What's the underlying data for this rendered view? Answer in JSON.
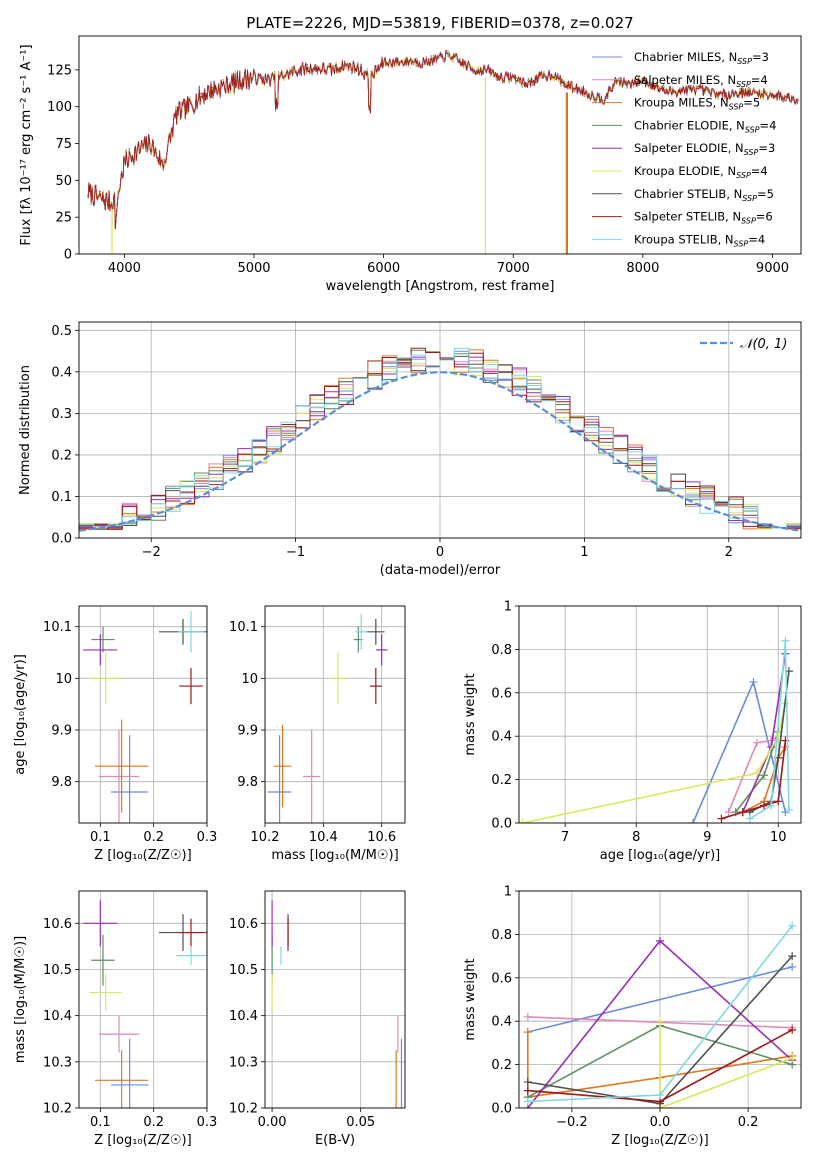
{
  "title": "PLATE=2226, MJD=53819, FIBERID=0378, z=0.027",
  "colors": {
    "Chabrier MILES": "#6a8cd8",
    "Salpeter MILES": "#e08ab8",
    "Kroupa MILES": "#e07820",
    "Chabrier ELODIE": "#5f8f64",
    "Salpeter ELODIE": "#9a2eb4",
    "Kroupa ELODIE": "#d8e85a",
    "Chabrier STELIB": "#505050",
    "Salpeter STELIB": "#a01818",
    "Kroupa STELIB": "#80d8e0",
    "normal": "#5b8ed8"
  },
  "chart_data": [
    {
      "id": "spectrum",
      "type": "line",
      "title": "PLATE=2226, MJD=53819, FIBERID=0378, z=0.027",
      "xlabel": "wavelength [Angstrom, rest frame]",
      "ylabel": "Flux [fλ 10⁻¹⁷ erg cm⁻² s⁻¹ A⁻¹]",
      "xlim": [
        3650,
        9220
      ],
      "ylim": [
        0,
        148
      ],
      "xticks": [
        4000,
        5000,
        6000,
        7000,
        8000,
        9000
      ],
      "yticks": [
        0,
        25,
        50,
        75,
        100,
        125
      ],
      "legend": "top-right",
      "x": [
        3720,
        3800,
        3900,
        3950,
        4000,
        4100,
        4200,
        4300,
        4400,
        4500,
        4600,
        4700,
        4800,
        4900,
        5000,
        5100,
        5200,
        5300,
        5400,
        5500,
        5600,
        5700,
        5800,
        5900,
        6000,
        6100,
        6200,
        6300,
        6400,
        6500,
        6600,
        6700,
        6800,
        6900,
        7000,
        7100,
        7200,
        7300,
        7400,
        7500,
        7600,
        7700,
        7800,
        7900,
        8000,
        8200,
        8400,
        8600,
        8800,
        9000,
        9200
      ],
      "flux": [
        42,
        38,
        35,
        40,
        62,
        70,
        75,
        60,
        95,
        100,
        108,
        112,
        115,
        118,
        120,
        118,
        120,
        124,
        126,
        126,
        125,
        128,
        126,
        120,
        130,
        130,
        131,
        130,
        132,
        135,
        130,
        125,
        125,
        120,
        120,
        115,
        120,
        122,
        115,
        112,
        108,
        105,
        118,
        115,
        118,
        110,
        112,
        108,
        110,
        108,
        105
      ],
      "series": [
        {
          "name": "Chabrier MILES",
          "nssp": "3"
        },
        {
          "name": "Salpeter MILES",
          "nssp": "4"
        },
        {
          "name": "Kroupa MILES",
          "nssp": "5"
        },
        {
          "name": "Chabrier ELODIE",
          "nssp": "4"
        },
        {
          "name": "Salpeter ELODIE",
          "nssp": "3"
        },
        {
          "name": "Kroupa ELODIE",
          "nssp": "4"
        },
        {
          "name": "Chabrier STELIB",
          "nssp": "5"
        },
        {
          "name": "Salpeter STELIB",
          "nssp": "6"
        },
        {
          "name": "Kroupa STELIB",
          "nssp": "4"
        }
      ]
    },
    {
      "id": "residuals",
      "type": "line",
      "xlabel": "(data-model)/error",
      "ylabel": "Normed distribution",
      "xlim": [
        -2.5,
        2.5
      ],
      "ylim": [
        0,
        0.52
      ],
      "xticks": [
        -2,
        -1,
        0,
        1,
        2
      ],
      "xticklabels": [
        "−2",
        "−1",
        "0",
        "1",
        "2"
      ],
      "yticks": [
        0.0,
        0.1,
        0.2,
        0.3,
        0.4,
        0.5
      ],
      "legend": "top-right",
      "legend_label": "𝒩(0, 1)",
      "bin_width": 0.1
    },
    {
      "id": "age-vs-Z",
      "type": "scatter",
      "xlabel": "Z [log₁₀(Z/Z☉)]",
      "ylabel": "age  [log₁₀(age/yr)]",
      "xlim": [
        0.06,
        0.3
      ],
      "ylim": [
        9.72,
        10.14
      ],
      "xticks": [
        0.1,
        0.2,
        0.3
      ],
      "yticks": [
        9.8,
        9.9,
        10.0,
        10.1
      ],
      "points": [
        {
          "s": "Chabrier MILES",
          "x": 0.155,
          "y": 9.78,
          "xerr": 0.035,
          "yerr": 0.11
        },
        {
          "s": "Salpeter MILES",
          "x": 0.135,
          "y": 9.81,
          "xerr": 0.038,
          "yerr": 0.09
        },
        {
          "s": "Kroupa MILES",
          "x": 0.14,
          "y": 9.83,
          "xerr": 0.05,
          "yerr": 0.09
        },
        {
          "s": "Chabrier ELODIE",
          "x": 0.105,
          "y": 10.075,
          "xerr": 0.022,
          "yerr": 0.025
        },
        {
          "s": "Salpeter ELODIE",
          "x": 0.1,
          "y": 10.055,
          "xerr": 0.032,
          "yerr": 0.03
        },
        {
          "s": "Kroupa ELODIE",
          "x": 0.11,
          "y": 10.0,
          "xerr": 0.03,
          "yerr": 0.05
        },
        {
          "s": "Chabrier STELIB",
          "x": 0.255,
          "y": 10.09,
          "xerr": 0.045,
          "yerr": 0.025
        },
        {
          "s": "Salpeter STELIB",
          "x": 0.27,
          "y": 9.985,
          "xerr": 0.022,
          "yerr": 0.035
        },
        {
          "s": "Kroupa STELIB",
          "x": 0.27,
          "y": 10.09,
          "xerr": 0.025,
          "yerr": 0.04
        }
      ]
    },
    {
      "id": "age-vs-mass",
      "type": "scatter",
      "xlabel": "mass [log₁₀(M/M☉)]",
      "ylabel": "",
      "xlim": [
        10.2,
        10.68
      ],
      "ylim": [
        9.72,
        10.14
      ],
      "xticks": [
        10.2,
        10.4,
        10.6
      ],
      "yticks": [
        9.8,
        9.9,
        10.0,
        10.1
      ],
      "points": [
        {
          "s": "Chabrier MILES",
          "x": 10.25,
          "y": 9.78,
          "xerr": 0.04,
          "yerr": 0.11
        },
        {
          "s": "Salpeter MILES",
          "x": 10.36,
          "y": 9.81,
          "xerr": 0.03,
          "yerr": 0.09
        },
        {
          "s": "Kroupa MILES",
          "x": 10.26,
          "y": 9.83,
          "xerr": 0.03,
          "yerr": 0.08
        },
        {
          "s": "Chabrier ELODIE",
          "x": 10.52,
          "y": 10.075,
          "xerr": 0.015,
          "yerr": 0.025
        },
        {
          "s": "Salpeter ELODIE",
          "x": 10.6,
          "y": 10.055,
          "xerr": 0.02,
          "yerr": 0.03
        },
        {
          "s": "Kroupa ELODIE",
          "x": 10.45,
          "y": 10.0,
          "xerr": 0.025,
          "yerr": 0.05
        },
        {
          "s": "Chabrier STELIB",
          "x": 10.58,
          "y": 10.09,
          "xerr": 0.03,
          "yerr": 0.025
        },
        {
          "s": "Salpeter STELIB",
          "x": 10.58,
          "y": 9.985,
          "xerr": 0.02,
          "yerr": 0.035
        },
        {
          "s": "Kroupa STELIB",
          "x": 10.53,
          "y": 10.09,
          "xerr": 0.02,
          "yerr": 0.035
        }
      ]
    },
    {
      "id": "weight-vs-age",
      "type": "line",
      "xlabel": "age  [log₁₀(age/yr)]",
      "ylabel": "mass weight",
      "xlim": [
        6.35,
        10.32
      ],
      "ylim": [
        0,
        1.0
      ],
      "xticks": [
        7,
        8,
        9,
        10
      ],
      "yticks": [
        0.0,
        0.2,
        0.4,
        0.6,
        0.8,
        1.0
      ],
      "series": [
        {
          "s": "Chabrier MILES",
          "x": [
            8.8,
            9.65,
            10.1
          ],
          "y": [
            0.0,
            0.65,
            0.05
          ]
        },
        {
          "s": "Salpeter MILES",
          "x": [
            9.3,
            9.7,
            9.9,
            10.0
          ],
          "y": [
            0.05,
            0.37,
            0.38,
            0.4
          ]
        },
        {
          "s": "Kroupa MILES",
          "x": [
            9.5,
            9.8,
            10.0,
            10.1
          ],
          "y": [
            0.05,
            0.1,
            0.3,
            0.35
          ]
        },
        {
          "s": "Chabrier ELODIE",
          "x": [
            9.4,
            9.8,
            10.0
          ],
          "y": [
            0.05,
            0.22,
            0.42
          ]
        },
        {
          "s": "Salpeter ELODIE",
          "x": [
            9.5,
            9.9,
            10.1
          ],
          "y": [
            0.05,
            0.35,
            0.78
          ]
        },
        {
          "s": "Kroupa ELODIE",
          "x": [
            6.4,
            9.7,
            10.0,
            10.1
          ],
          "y": [
            0.0,
            0.23,
            0.4,
            0.55
          ]
        },
        {
          "s": "Chabrier STELIB",
          "x": [
            9.6,
            9.9,
            10.0,
            10.15
          ],
          "y": [
            0.05,
            0.1,
            0.3,
            0.7
          ]
        },
        {
          "s": "Salpeter STELIB",
          "x": [
            9.2,
            9.5,
            9.8,
            10.0,
            10.1
          ],
          "y": [
            0.02,
            0.05,
            0.08,
            0.1,
            0.38
          ]
        },
        {
          "s": "Kroupa STELIB",
          "x": [
            9.6,
            9.9,
            10.1,
            10.15
          ],
          "y": [
            0.02,
            0.08,
            0.84,
            0.06
          ]
        }
      ]
    },
    {
      "id": "mass-vs-Z",
      "type": "scatter",
      "xlabel": "Z [log₁₀(Z/Z☉)]",
      "ylabel": "mass [log₁₀(M/M☉)]",
      "xlim": [
        0.06,
        0.3
      ],
      "ylim": [
        10.2,
        10.67
      ],
      "xticks": [
        0.1,
        0.2,
        0.3
      ],
      "yticks": [
        10.2,
        10.3,
        10.4,
        10.5,
        10.6
      ],
      "points": [
        {
          "s": "Chabrier MILES",
          "x": 0.155,
          "y": 10.25,
          "xerr": 0.035,
          "yerr": 0.1
        },
        {
          "s": "Salpeter MILES",
          "x": 0.135,
          "y": 10.36,
          "xerr": 0.038,
          "yerr": 0.04
        },
        {
          "s": "Kroupa MILES",
          "x": 0.14,
          "y": 10.26,
          "xerr": 0.05,
          "yerr": 0.065
        },
        {
          "s": "Chabrier ELODIE",
          "x": 0.105,
          "y": 10.52,
          "xerr": 0.022,
          "yerr": 0.055
        },
        {
          "s": "Salpeter ELODIE",
          "x": 0.1,
          "y": 10.6,
          "xerr": 0.032,
          "yerr": 0.05
        },
        {
          "s": "Kroupa ELODIE",
          "x": 0.11,
          "y": 10.45,
          "xerr": 0.03,
          "yerr": 0.04
        },
        {
          "s": "Chabrier STELIB",
          "x": 0.255,
          "y": 10.58,
          "xerr": 0.045,
          "yerr": 0.04
        },
        {
          "s": "Salpeter STELIB",
          "x": 0.27,
          "y": 10.58,
          "xerr": 0.022,
          "yerr": 0.03
        },
        {
          "s": "Kroupa STELIB",
          "x": 0.27,
          "y": 10.53,
          "xerr": 0.028,
          "yerr": 0.02
        }
      ]
    },
    {
      "id": "mass-vs-EBV",
      "type": "scatter",
      "xlabel": "E(B-V)",
      "ylabel": "",
      "xlim": [
        -0.004,
        0.075
      ],
      "ylim": [
        10.2,
        10.67
      ],
      "xticks": [
        0.0,
        0.05
      ],
      "xticklabels": [
        "0.00",
        "0.05"
      ],
      "yticks": [
        10.2,
        10.3,
        10.4,
        10.5,
        10.6
      ],
      "points": [
        {
          "s": "Chabrier MILES",
          "x": 0.073,
          "y": 10.25,
          "xerr": 0,
          "yerr": 0.1
        },
        {
          "s": "Salpeter MILES",
          "x": 0.071,
          "y": 10.36,
          "xerr": 0,
          "yerr": 0.04
        },
        {
          "s": "Kroupa MILES",
          "x": 0.07,
          "y": 10.26,
          "xerr": 0,
          "yerr": 0.065
        },
        {
          "s": "Chabrier ELODIE",
          "x": 0.0,
          "y": 10.52,
          "xerr": 0,
          "yerr": 0.055
        },
        {
          "s": "Salpeter ELODIE",
          "x": 0.0,
          "y": 10.6,
          "xerr": 0,
          "yerr": 0.05
        },
        {
          "s": "Kroupa ELODIE",
          "x": 0.0,
          "y": 10.45,
          "xerr": 0,
          "yerr": 0.04
        },
        {
          "s": "Chabrier STELIB",
          "x": 0.009,
          "y": 10.58,
          "xerr": 0,
          "yerr": 0.04
        },
        {
          "s": "Salpeter STELIB",
          "x": 0.009,
          "y": 10.58,
          "xerr": 0,
          "yerr": 0.03
        },
        {
          "s": "Kroupa STELIB",
          "x": 0.005,
          "y": 10.53,
          "xerr": 0,
          "yerr": 0.02
        }
      ]
    },
    {
      "id": "weight-vs-Z",
      "type": "line",
      "xlabel": "Z [log₁₀(Z/Z☉)]",
      "ylabel": "mass weight",
      "xlim": [
        -0.32,
        0.32
      ],
      "ylim": [
        0,
        1.0
      ],
      "xticks": [
        -0.2,
        0.0,
        0.2
      ],
      "xticklabels": [
        "−0.2",
        "0.0",
        "0.2"
      ],
      "yticks": [
        0.0,
        0.2,
        0.4,
        0.6,
        0.8,
        1.0
      ],
      "series": [
        {
          "s": "Chabrier MILES",
          "x": [
            -0.3,
            0.3
          ],
          "y": [
            0.35,
            0.65
          ]
        },
        {
          "s": "Salpeter MILES",
          "x": [
            -0.3,
            0.3
          ],
          "y": [
            0.42,
            0.37
          ]
        },
        {
          "s": "Kroupa MILES",
          "x": [
            -0.3,
            -0.3,
            0.0,
            0.3
          ],
          "y": [
            0.35,
            0.05,
            0.14,
            0.24
          ]
        },
        {
          "s": "Chabrier ELODIE",
          "x": [
            -0.3,
            0.0,
            0.3
          ],
          "y": [
            0.05,
            0.38,
            0.2
          ]
        },
        {
          "s": "Salpeter ELODIE",
          "x": [
            -0.3,
            0.0,
            0.3
          ],
          "y": [
            0.0,
            0.77,
            0.22
          ]
        },
        {
          "s": "Kroupa ELODIE",
          "x": [
            0.0,
            0.0,
            0.3
          ],
          "y": [
            0.4,
            0.0,
            0.23
          ]
        },
        {
          "s": "Chabrier STELIB",
          "x": [
            -0.3,
            0.0,
            0.3
          ],
          "y": [
            0.12,
            0.02,
            0.7
          ]
        },
        {
          "s": "Salpeter STELIB",
          "x": [
            -0.3,
            0.0,
            0.3
          ],
          "y": [
            0.08,
            0.03,
            0.36
          ]
        },
        {
          "s": "Kroupa STELIB",
          "x": [
            -0.3,
            0.0,
            0.3
          ],
          "y": [
            0.03,
            0.06,
            0.84
          ]
        }
      ]
    }
  ]
}
